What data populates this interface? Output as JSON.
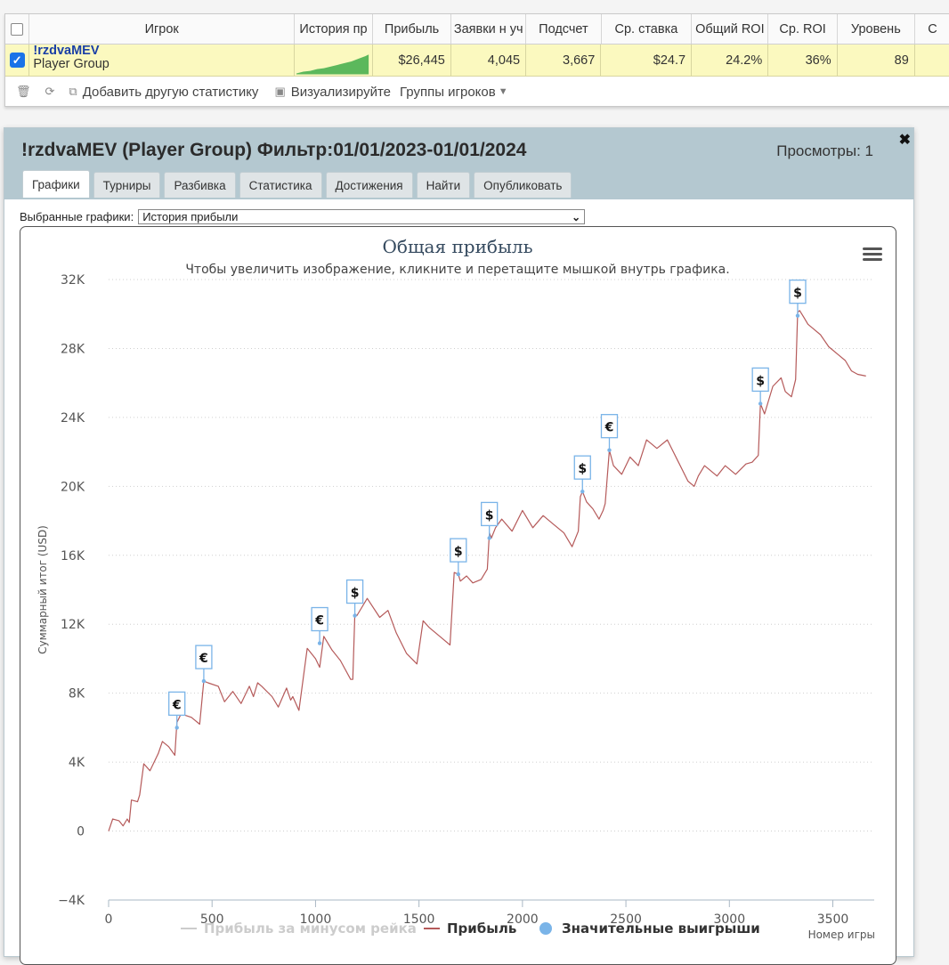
{
  "stats": {
    "headers": [
      "Игрок",
      "История пр",
      "Прибыль",
      "Заявки н уч",
      "Подсчет",
      "Ср. ставка",
      "Общий ROI",
      "Ср. ROI",
      "Уровень",
      "С"
    ],
    "player": {
      "name": "!rzdvaMEV",
      "group": "Player Group",
      "values": [
        "$26,445",
        "4,045",
        "3,667",
        "$24.7",
        "24.2%",
        "36%",
        "89"
      ]
    },
    "toolbar": {
      "add_stat": "Добавить другую статистику",
      "visualize": "Визуализируйте",
      "groups": "Группы игроков"
    }
  },
  "panel": {
    "title": "!rzdvaMEV (Player Group) Фильтр:01/01/2023-01/01/2024",
    "views": "Просмотры: 1",
    "close": "✖",
    "tabs": [
      "Графики",
      "Турниры",
      "Разбивка",
      "Статистика",
      "Достижения",
      "Найти",
      "Опубликовать"
    ],
    "selector_label": "Выбранные графики:",
    "selector_value": "История прибыли"
  },
  "chart_data": {
    "type": "line",
    "title": "Общая прибыль",
    "subtitle": "Чтобы увеличить изображение, кликните и перетащите мышкой внутрь графика.",
    "xlabel": "Номер игры",
    "ylabel": "Суммарный итог (USD)",
    "xlim": [
      0,
      3700
    ],
    "ylim": [
      -4000,
      32000
    ],
    "x_ticks": [
      0,
      500,
      1000,
      1500,
      2000,
      2500,
      3000,
      3500
    ],
    "y_ticks": [
      -4000,
      0,
      4000,
      8000,
      12000,
      16000,
      20000,
      24000,
      28000,
      32000
    ],
    "y_tick_labels": [
      "−4K",
      "0",
      "4K",
      "8K",
      "12K",
      "16K",
      "20K",
      "24K",
      "28K",
      "32K"
    ],
    "grid": true,
    "legend_position": "bottom",
    "legend": [
      {
        "name": "Прибыль за минусом рейка",
        "color": "#cccccc",
        "visible": false
      },
      {
        "name": "Прибыль",
        "color": "#b55a5a",
        "visible": true
      },
      {
        "name": "Значительные выигрыши",
        "color": "#7ab4e8",
        "visible": true
      }
    ],
    "series": [
      {
        "name": "Прибыль",
        "color": "#b55a5a",
        "x": [
          0,
          20,
          50,
          70,
          90,
          100,
          110,
          140,
          150,
          170,
          200,
          240,
          260,
          290,
          320,
          330,
          350,
          400,
          440,
          460,
          480,
          530,
          560,
          600,
          640,
          680,
          700,
          720,
          740,
          790,
          820,
          860,
          880,
          890,
          920,
          960,
          1000,
          1020,
          1040,
          1080,
          1120,
          1170,
          1180,
          1190,
          1200,
          1250,
          1310,
          1350,
          1390,
          1440,
          1490,
          1520,
          1550,
          1610,
          1650,
          1670,
          1690,
          1700,
          1730,
          1760,
          1800,
          1830,
          1840,
          1850,
          1870,
          1900,
          1950,
          2000,
          2050,
          2100,
          2150,
          2200,
          2240,
          2270,
          2280,
          2290,
          2310,
          2340,
          2370,
          2390,
          2400,
          2420,
          2440,
          2480,
          2520,
          2560,
          2600,
          2650,
          2700,
          2750,
          2800,
          2830,
          2850,
          2880,
          2940,
          2980,
          3030,
          3080,
          3110,
          3140,
          3150,
          3170,
          3210,
          3250,
          3270,
          3300,
          3320,
          3330,
          3340,
          3360,
          3380,
          3400,
          3440,
          3480,
          3530,
          3560,
          3590,
          3620,
          3660
        ],
        "y": [
          0,
          700,
          600,
          300,
          700,
          500,
          1800,
          1700,
          2100,
          3900,
          3500,
          4500,
          5200,
          4900,
          4400,
          6300,
          6800,
          6600,
          6200,
          8700,
          8600,
          8400,
          7500,
          8100,
          7400,
          8400,
          7800,
          8600,
          8400,
          7800,
          7200,
          8300,
          7600,
          7800,
          7000,
          10600,
          10000,
          9500,
          11300,
          10500,
          9900,
          8800,
          8800,
          12600,
          12500,
          13500,
          12400,
          12800,
          11500,
          10300,
          9700,
          12200,
          11800,
          11200,
          10800,
          15000,
          14900,
          14500,
          14800,
          14400,
          14600,
          15200,
          17300,
          17000,
          17600,
          18100,
          17400,
          18600,
          17600,
          18300,
          17800,
          17300,
          16500,
          17400,
          19400,
          19700,
          19100,
          18700,
          18100,
          18600,
          19000,
          22100,
          21200,
          20700,
          21700,
          21200,
          22700,
          22200,
          22700,
          21500,
          20300,
          20000,
          20600,
          21200,
          20600,
          21200,
          20700,
          21300,
          21400,
          21800,
          24800,
          24200,
          25800,
          26300,
          25500,
          25200,
          26200,
          30100,
          30200,
          29800,
          29400,
          29200,
          28800,
          28100,
          27600,
          27300,
          26700,
          26500,
          26400
        ]
      }
    ],
    "markers": [
      {
        "x": 330,
        "y": 6000,
        "symbol": "€"
      },
      {
        "x": 460,
        "y": 8700,
        "symbol": "€"
      },
      {
        "x": 1020,
        "y": 10900,
        "symbol": "€"
      },
      {
        "x": 1190,
        "y": 12500,
        "symbol": "$"
      },
      {
        "x": 1690,
        "y": 14900,
        "symbol": "$"
      },
      {
        "x": 1840,
        "y": 17000,
        "symbol": "$"
      },
      {
        "x": 2290,
        "y": 19700,
        "symbol": "$"
      },
      {
        "x": 2420,
        "y": 22100,
        "symbol": "€"
      },
      {
        "x": 3150,
        "y": 24800,
        "symbol": "$"
      },
      {
        "x": 3330,
        "y": 29900,
        "symbol": "$"
      }
    ]
  }
}
